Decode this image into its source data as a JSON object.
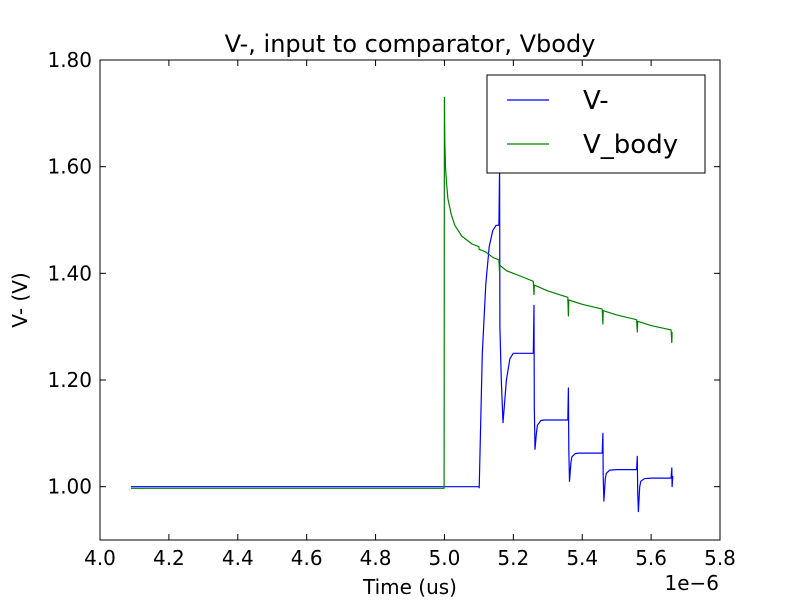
{
  "chart_data": {
    "type": "line",
    "title": "V-, input to comparator, Vbody",
    "xlabel": "Time (us)",
    "ylabel": "V- (V)",
    "x_offset_label": "1e−6",
    "xlim": [
      4.0,
      5.8
    ],
    "ylim": [
      0.9,
      1.8
    ],
    "x_ticks": [
      4.0,
      4.2,
      4.4,
      4.6,
      4.8,
      5.0,
      5.2,
      5.4,
      5.6,
      5.8
    ],
    "x_tick_labels": [
      "4.0",
      "4.2",
      "4.4",
      "4.6",
      "4.8",
      "5.0",
      "5.2",
      "5.4",
      "5.6",
      "5.8"
    ],
    "y_ticks": [
      1.0,
      1.2,
      1.4,
      1.6,
      1.8
    ],
    "y_tick_labels": [
      "1.00",
      "1.20",
      "1.40",
      "1.60",
      "1.80"
    ],
    "grid": false,
    "legend_position": "top-right",
    "series": [
      {
        "name": "V-",
        "color": "#0000ff",
        "x": [
          4.09,
          4.8,
          5.0,
          5.1,
          5.101,
          5.11,
          5.12,
          5.13,
          5.14,
          5.15,
          5.158,
          5.16,
          5.161,
          5.165,
          5.17,
          5.18,
          5.19,
          5.2,
          5.22,
          5.24,
          5.258,
          5.26,
          5.261,
          5.263,
          5.267,
          5.27,
          5.28,
          5.29,
          5.3,
          5.33,
          5.358,
          5.36,
          5.361,
          5.363,
          5.367,
          5.37,
          5.38,
          5.39,
          5.42,
          5.458,
          5.46,
          5.461,
          5.463,
          5.467,
          5.47,
          5.48,
          5.5,
          5.558,
          5.56,
          5.561,
          5.563,
          5.567,
          5.57,
          5.58,
          5.6,
          5.658,
          5.66,
          5.661,
          5.663
        ],
        "y": [
          1.0,
          1.0,
          1.0,
          1.0,
          0.998,
          1.25,
          1.38,
          1.45,
          1.48,
          1.49,
          1.49,
          1.6,
          1.3,
          1.2,
          1.12,
          1.2,
          1.24,
          1.25,
          1.25,
          1.25,
          1.25,
          1.34,
          1.15,
          1.07,
          1.1,
          1.115,
          1.124,
          1.125,
          1.125,
          1.125,
          1.125,
          1.185,
          1.07,
          1.01,
          1.045,
          1.056,
          1.062,
          1.063,
          1.063,
          1.063,
          1.1,
          1.02,
          0.973,
          1.015,
          1.025,
          1.031,
          1.032,
          1.032,
          1.057,
          0.99,
          0.953,
          1.0,
          1.01,
          1.015,
          1.016,
          1.016,
          1.035,
          1.0,
          1.02
        ]
      },
      {
        "name": "V_body",
        "color": "#008000",
        "x": [
          4.09,
          4.8,
          4.999,
          5.0,
          5.001,
          5.003,
          5.006,
          5.01,
          5.02,
          5.03,
          5.05,
          5.08,
          5.1,
          5.101,
          5.12,
          5.14,
          5.158,
          5.16,
          5.161,
          5.18,
          5.22,
          5.258,
          5.26,
          5.261,
          5.3,
          5.358,
          5.36,
          5.361,
          5.4,
          5.458,
          5.46,
          5.461,
          5.5,
          5.558,
          5.56,
          5.561,
          5.6,
          5.658,
          5.66,
          5.661
        ],
        "y": [
          0.997,
          0.997,
          0.997,
          1.73,
          1.65,
          1.6,
          1.57,
          1.54,
          1.51,
          1.49,
          1.47,
          1.455,
          1.45,
          1.445,
          1.44,
          1.43,
          1.425,
          1.4,
          1.415,
          1.405,
          1.395,
          1.385,
          1.36,
          1.378,
          1.367,
          1.355,
          1.32,
          1.35,
          1.342,
          1.333,
          1.305,
          1.33,
          1.322,
          1.313,
          1.29,
          1.31,
          1.302,
          1.294,
          1.27,
          1.29
        ]
      }
    ]
  }
}
